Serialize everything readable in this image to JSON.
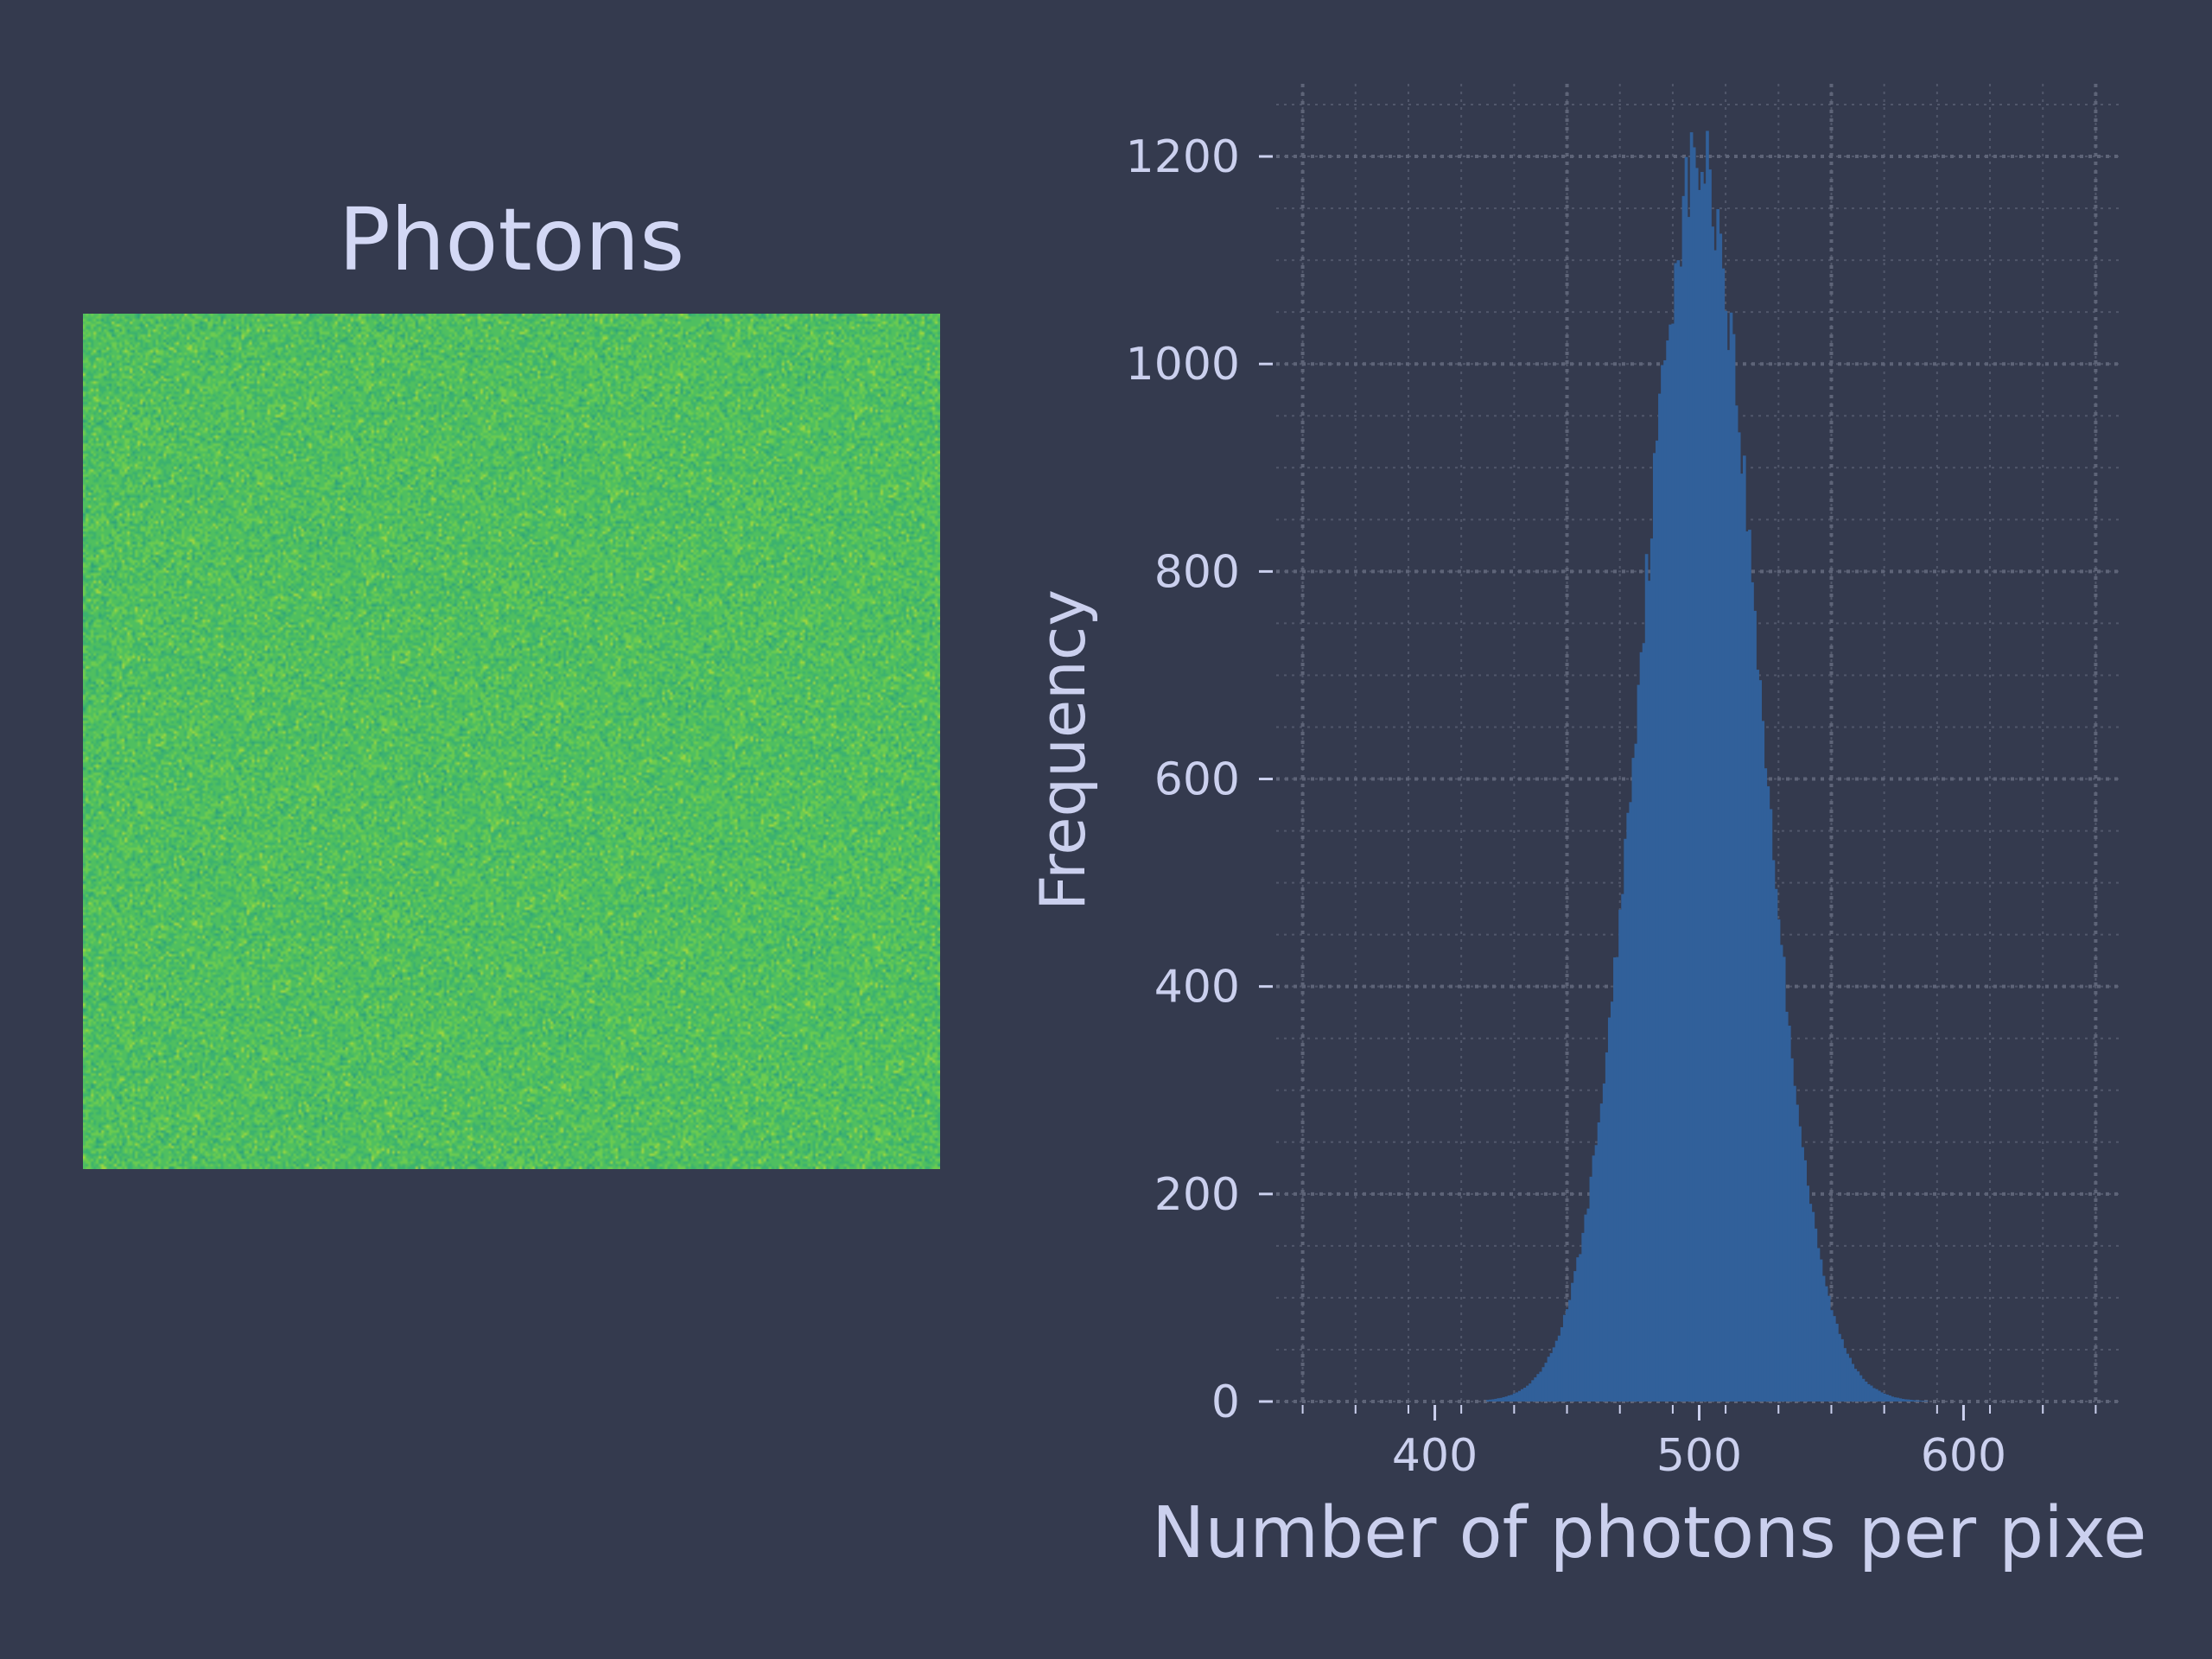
{
  "image_panel": {
    "title": "Photons",
    "colormap": [
      "#2fa37a",
      "#3cb26f",
      "#4fbf60",
      "#6ccc50",
      "#9ed73f"
    ]
  },
  "colors": {
    "background": "#343a4e",
    "text": "#cbd0ee",
    "bars": "#31609a",
    "grid": "#5e6478"
  },
  "chart_data": {
    "type": "histogram",
    "xlabel": "Number of photons per pixe",
    "ylabel": "Frequency",
    "xlim": [
      340,
      660
    ],
    "ylim": [
      0,
      1270
    ],
    "x_ticks": [
      400,
      500,
      600
    ],
    "y_ticks": [
      0,
      200,
      400,
      600,
      800,
      1000,
      1200
    ],
    "grid": true,
    "distribution": {
      "mean": 500,
      "std": 22,
      "peak": 1195,
      "min": 420,
      "max": 590
    }
  }
}
